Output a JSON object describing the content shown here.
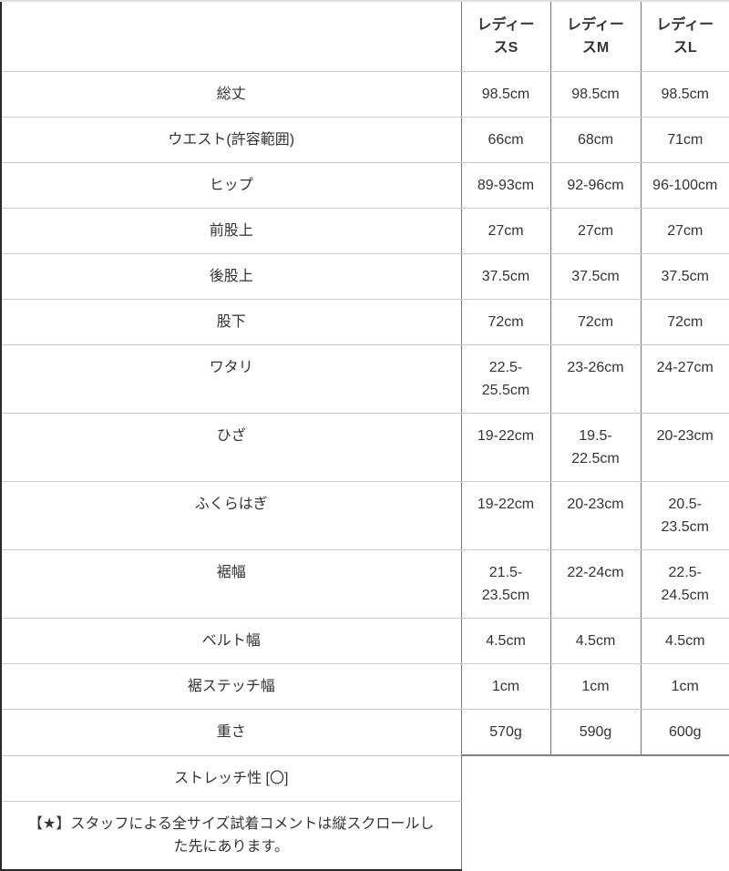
{
  "colors": {
    "text": "#333333",
    "row_separator": "#cccccc",
    "column_separator": "#777777",
    "outer_frame": "#2b2b2b",
    "top_frame": "#dddddd",
    "size_columns_bottom": "#808080",
    "background": "#ffffff"
  },
  "chart_data": {
    "type": "table",
    "columns": [
      "",
      "レディースS",
      "レディースM",
      "レディースL"
    ],
    "rows": [
      {
        "label": "総丈",
        "values": [
          "98.5cm",
          "98.5cm",
          "98.5cm"
        ]
      },
      {
        "label": "ウエスト(許容範囲)",
        "values": [
          "66cm",
          "68cm",
          "71cm"
        ]
      },
      {
        "label": "ヒップ",
        "values": [
          "89-93cm",
          "92-96cm",
          "96-100cm"
        ]
      },
      {
        "label": "前股上",
        "values": [
          "27cm",
          "27cm",
          "27cm"
        ]
      },
      {
        "label": "後股上",
        "values": [
          "37.5cm",
          "37.5cm",
          "37.5cm"
        ]
      },
      {
        "label": "股下",
        "values": [
          "72cm",
          "72cm",
          "72cm"
        ]
      },
      {
        "label": "ワタリ",
        "values": [
          "22.5-25.5cm",
          "23-26cm",
          "24-27cm"
        ]
      },
      {
        "label": "ひざ",
        "values": [
          "19-22cm",
          "19.5-22.5cm",
          "20-23cm"
        ]
      },
      {
        "label": "ふくらはぎ",
        "values": [
          "19-22cm",
          "20-23cm",
          "20.5-23.5cm"
        ]
      },
      {
        "label": "裾幅",
        "values": [
          "21.5-23.5cm",
          "22-24cm",
          "22.5-24.5cm"
        ]
      },
      {
        "label": "ベルト幅",
        "values": [
          "4.5cm",
          "4.5cm",
          "4.5cm"
        ]
      },
      {
        "label": "裾ステッチ幅",
        "values": [
          "1cm",
          "1cm",
          "1cm"
        ]
      },
      {
        "label": "重さ",
        "values": [
          "570g",
          "590g",
          "600g"
        ]
      }
    ],
    "footer_notes": [
      "ストレッチ性 [〇]",
      "【★】スタッフによる全サイズ試着コメントは縦スクロールした先にあります。"
    ]
  }
}
